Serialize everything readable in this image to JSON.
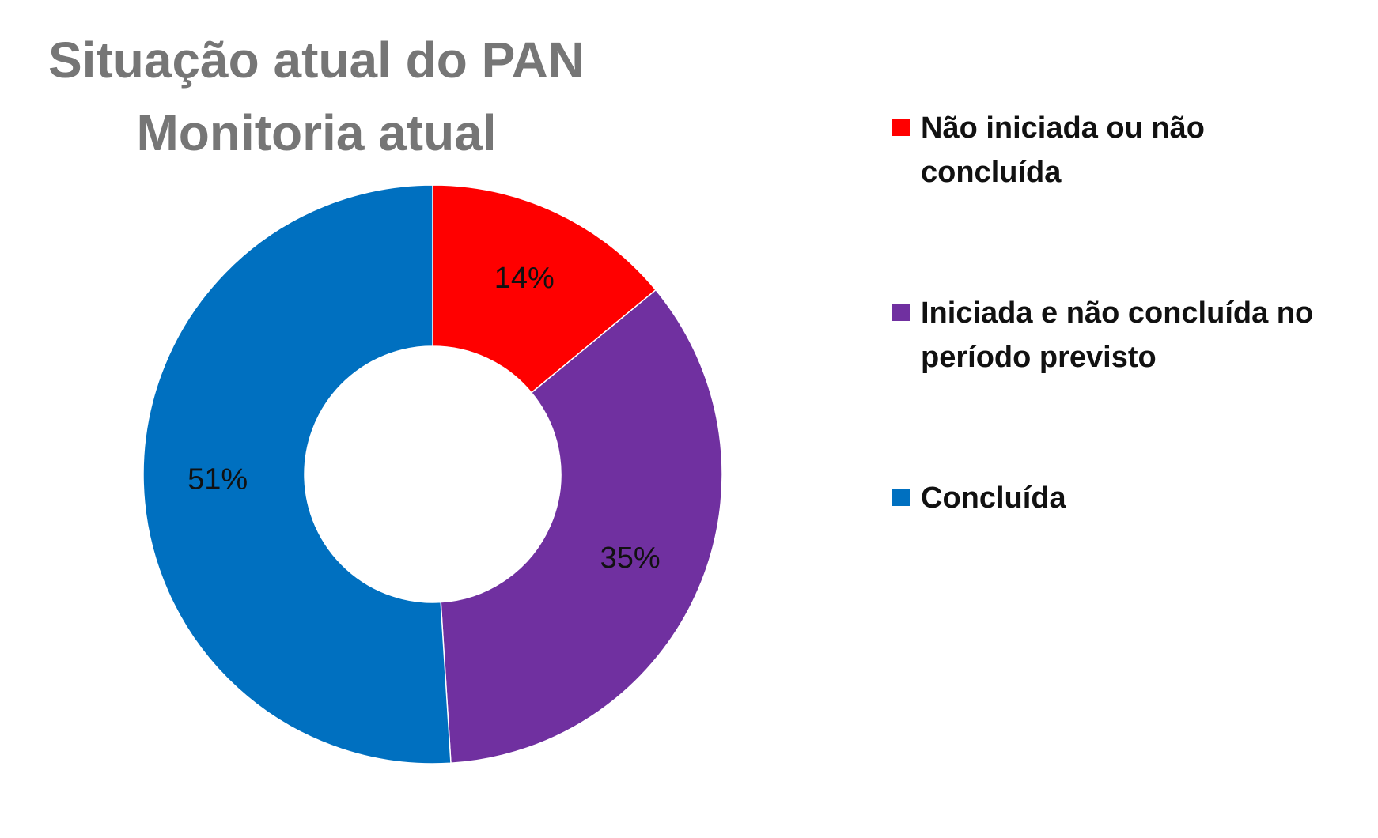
{
  "chart_data": {
    "type": "pie",
    "title": [
      "Situação atual do PAN",
      "Monitoria atual"
    ],
    "donut": true,
    "legend_position": "right",
    "series": [
      {
        "name": "Não iniciada ou não concluída",
        "value": 14,
        "label": "14%",
        "color": "#FF0000"
      },
      {
        "name": "Iniciada e não concluída no período previsto",
        "value": 35,
        "label": "35%",
        "color": "#7030A0"
      },
      {
        "name": "Concluída",
        "value": 51,
        "label": "51%",
        "color": "#0070C0"
      }
    ]
  }
}
